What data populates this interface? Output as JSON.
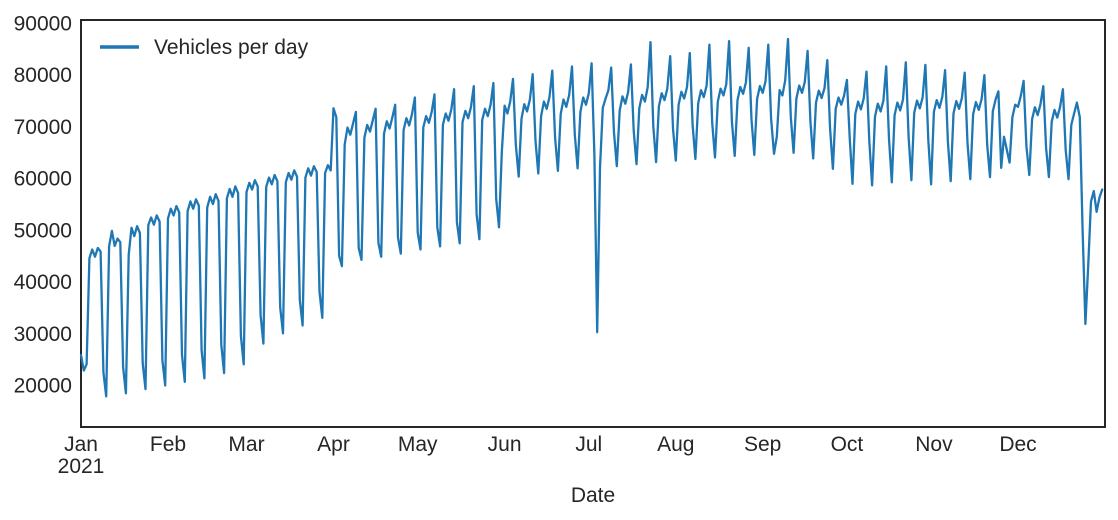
{
  "chart_data": {
    "type": "line",
    "title": "",
    "xlabel": "Date",
    "ylabel": "",
    "grid": false,
    "legend_position": "upper-left",
    "line_color": "#1f77b4",
    "axis_color": "#262626",
    "background_color": "#ffffff",
    "x_tick_labels": [
      "Jan",
      "Feb",
      "Mar",
      "Apr",
      "May",
      "Jun",
      "Jul",
      "Aug",
      "Sep",
      "Oct",
      "Nov",
      "Dec"
    ],
    "x_tick_sublabel": "2021",
    "x_tick_day_offsets": [
      0,
      31,
      59,
      90,
      120,
      151,
      181,
      212,
      243,
      273,
      304,
      334
    ],
    "y_ticks": [
      20000,
      30000,
      40000,
      50000,
      60000,
      70000,
      80000,
      90000
    ],
    "y_tick_labels": [
      "20000",
      "30000",
      "40000",
      "50000",
      "60000",
      "70000",
      "80000",
      "90000"
    ],
    "ylim": [
      11878,
      90580
    ],
    "num_days": 365,
    "start_date": "2021-01-01",
    "series": [
      {
        "name": "Vehicles per day",
        "values": [
          25800,
          22800,
          24000,
          44500,
          46200,
          44800,
          46500,
          45800,
          22500,
          17800,
          46800,
          49800,
          46900,
          48300,
          47600,
          23500,
          18400,
          45200,
          50400,
          48800,
          50700,
          49400,
          24200,
          19200,
          50900,
          52400,
          51000,
          52800,
          51600,
          24800,
          19900,
          52200,
          54100,
          52800,
          54600,
          53400,
          25800,
          20600,
          53600,
          55500,
          54100,
          55900,
          54700,
          26700,
          21300,
          54300,
          56400,
          55000,
          56900,
          55600,
          27800,
          22300,
          56100,
          57900,
          56400,
          58400,
          57100,
          29500,
          24000,
          57300,
          59100,
          57800,
          59600,
          58400,
          33500,
          28000,
          58300,
          60100,
          58800,
          60600,
          59400,
          35000,
          30000,
          59200,
          61000,
          59700,
          61500,
          60300,
          36500,
          31500,
          60100,
          61900,
          60500,
          62300,
          61200,
          38000,
          33000,
          61000,
          62500,
          61500,
          73500,
          71800,
          45000,
          43000,
          66500,
          69800,
          68400,
          70600,
          72800,
          46500,
          44200,
          67800,
          70300,
          69000,
          71200,
          73400,
          47500,
          44800,
          68600,
          71000,
          69600,
          71800,
          74200,
          48500,
          45400,
          69300,
          71600,
          70200,
          72400,
          75600,
          49500,
          46200,
          69800,
          72000,
          70700,
          72800,
          76200,
          50500,
          46800,
          70300,
          72500,
          71100,
          73300,
          77200,
          51500,
          47400,
          70800,
          73000,
          71600,
          73800,
          77800,
          53000,
          48200,
          71200,
          73400,
          72000,
          74200,
          78400,
          56000,
          50500,
          65000,
          74000,
          72500,
          74800,
          79200,
          66500,
          60300,
          71500,
          74300,
          72900,
          75200,
          80100,
          67200,
          60900,
          72000,
          74800,
          73400,
          75700,
          80800,
          67800,
          61400,
          72400,
          75200,
          73800,
          76100,
          81600,
          68400,
          61900,
          72800,
          75600,
          74200,
          76400,
          82200,
          64500,
          30200,
          62000,
          73600,
          75400,
          77000,
          81400,
          68800,
          62300,
          73100,
          75800,
          74400,
          76600,
          82000,
          69200,
          62700,
          73500,
          76100,
          74800,
          77600,
          86300,
          70000,
          63100,
          73900,
          76400,
          75100,
          77300,
          83600,
          69600,
          63400,
          74200,
          76700,
          75400,
          77600,
          84200,
          70300,
          63700,
          74500,
          77000,
          75700,
          77900,
          85800,
          70700,
          64000,
          74800,
          77300,
          76000,
          78200,
          86500,
          71000,
          64300,
          75100,
          77600,
          76300,
          78500,
          85200,
          71300,
          64500,
          75300,
          77800,
          76500,
          78700,
          85800,
          71500,
          64700,
          68000,
          77000,
          76000,
          78900,
          86900,
          71800,
          64900,
          75400,
          77900,
          76500,
          78600,
          84600,
          71000,
          63800,
          74600,
          76900,
          75500,
          77400,
          82800,
          69500,
          61800,
          73400,
          75600,
          74200,
          76000,
          79000,
          67800,
          58900,
          72400,
          74800,
          73300,
          75400,
          80600,
          67200,
          58600,
          71900,
          74400,
          72900,
          75000,
          81600,
          67600,
          59200,
          72200,
          74600,
          73100,
          75200,
          82400,
          68000,
          59600,
          72600,
          75000,
          73500,
          75600,
          81900,
          67400,
          58800,
          72800,
          75100,
          73600,
          75700,
          80900,
          67000,
          59400,
          72500,
          74900,
          73400,
          75500,
          80400,
          66800,
          59800,
          72300,
          74700,
          73200,
          75300,
          79900,
          66400,
          60200,
          72900,
          75200,
          76800,
          62000,
          68000,
          65500,
          63000,
          71800,
          74200,
          73800,
          75900,
          78800,
          66200,
          60600,
          71400,
          73700,
          72200,
          74300,
          77800,
          65800,
          60200,
          70900,
          73200,
          71700,
          73800,
          77200,
          65400,
          59800,
          70300,
          72500,
          74600,
          71800,
          50000,
          31800,
          43000,
          55500,
          57500,
          53500,
          56200,
          57800
        ]
      }
    ]
  }
}
